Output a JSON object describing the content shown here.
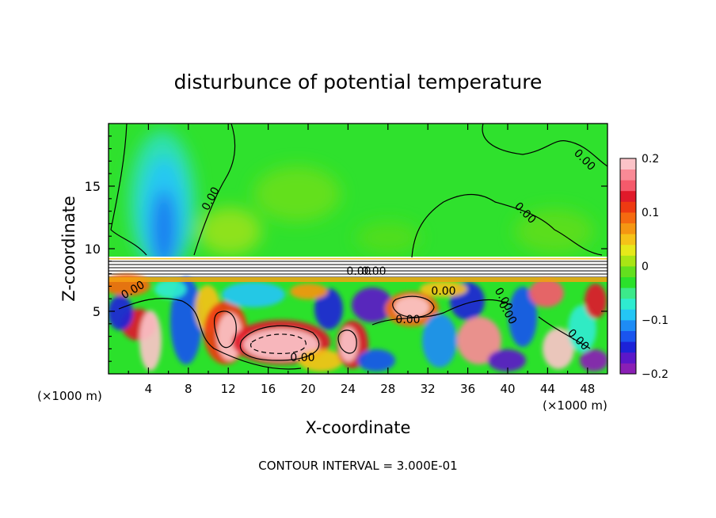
{
  "chart_data": {
    "type": "heatmap",
    "title": "disturbunce of potential temperature",
    "xlabel": "X-coordinate",
    "ylabel": "Z-coordinate",
    "x_unit": "(×1000 m)",
    "z_unit": "(×1000 m)",
    "xlim": [
      0,
      50
    ],
    "ylim": [
      0,
      20
    ],
    "x_ticks": [
      "4",
      "8",
      "12",
      "16",
      "20",
      "24",
      "28",
      "32",
      "36",
      "40",
      "44",
      "48"
    ],
    "y_ticks": [
      "5",
      "10",
      "15"
    ],
    "colorbar": {
      "range": [
        -0.2,
        0.2
      ],
      "tick_labels": [
        "0.2",
        "0.1",
        "0",
        "−0.1",
        "−0.2"
      ],
      "colors": [
        "#8a1fb5",
        "#5b17c9",
        "#1c22d8",
        "#1a55ee",
        "#1e8cf5",
        "#24c6f5",
        "#2fecd0",
        "#3ce98a",
        "#2be12b",
        "#63e01e",
        "#a9e515",
        "#e6e81a",
        "#f5c218",
        "#f59612",
        "#f56a10",
        "#ee3a12",
        "#e01a2a",
        "#f55a6b",
        "#f98a96",
        "#fbc3c8"
      ]
    },
    "contour_labels": [
      "0.00",
      "0.00",
      "0.00",
      "0.00",
      "0.00",
      "0.00",
      "0.00",
      "0.00",
      "0.00",
      "0.00",
      "0.00",
      "0.00"
    ],
    "footer": "CONTOUR INTERVAL = 3.000E-01"
  }
}
